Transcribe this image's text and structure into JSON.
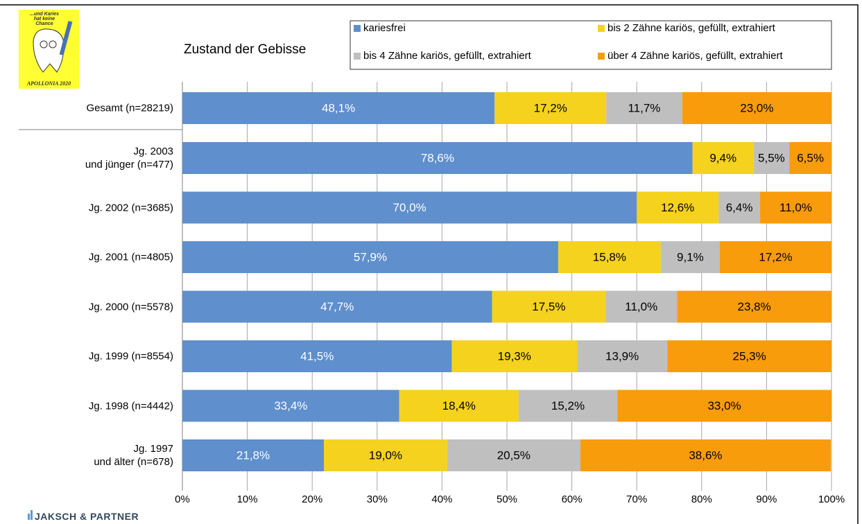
{
  "chart_data": {
    "type": "stacked_barh",
    "title": "Zustand der Gebisse",
    "categories": [
      "Gesamt (n=28219)",
      "Jg. 2003\nund jünger (n=477)",
      "Jg. 2002 (n=3685)",
      "Jg. 2001 (n=4805)",
      "Jg. 2000 (n=5578)",
      "Jg. 1999 (n=8554)",
      "Jg. 1998 (n=4442)",
      "Jg. 1997\nund älter (n=678)"
    ],
    "series": [
      {
        "name": "kariesfrei",
        "color": "#5f8fcc",
        "values": [
          48.1,
          78.6,
          70.0,
          57.9,
          47.7,
          41.5,
          33.4,
          21.8
        ],
        "value_labels": [
          "48,1%",
          "78,6%",
          "70,0%",
          "57,9%",
          "47,7%",
          "41,5%",
          "33,4%",
          "21,8%"
        ]
      },
      {
        "name": "bis 2 Zähne kariös, gefüllt, extrahiert",
        "color": "#f5d21e",
        "values": [
          17.2,
          9.4,
          12.6,
          15.8,
          17.5,
          19.3,
          18.4,
          19.0
        ],
        "value_labels": [
          "17,2%",
          "9,4%",
          "12,6%",
          "15,8%",
          "17,5%",
          "19,3%",
          "18,4%",
          "19,0%"
        ]
      },
      {
        "name": "bis 4 Zähne kariös, gefüllt, extrahiert",
        "color": "#bfbfbf",
        "values": [
          11.7,
          5.5,
          6.4,
          9.1,
          11.0,
          13.9,
          15.2,
          20.5
        ],
        "value_labels": [
          "11,7%",
          "5,5%",
          "6,4%",
          "9,1%",
          "11,0%",
          "13,9%",
          "15,2%",
          "20,5%"
        ]
      },
      {
        "name": "über 4 Zähne kariös, gefüllt, extrahiert",
        "color": "#f99c0c",
        "values": [
          23.0,
          6.5,
          11.0,
          17.2,
          23.8,
          25.3,
          33.0,
          38.6
        ],
        "value_labels": [
          "23,0%",
          "6,5%",
          "11,0%",
          "17,2%",
          "23,8%",
          "25,3%",
          "33,0%",
          "38,6%"
        ]
      }
    ],
    "xlim": [
      0,
      100
    ],
    "xticks": [
      {
        "value": 0,
        "label": "0%"
      },
      {
        "value": 10,
        "label": "10%"
      },
      {
        "value": 20,
        "label": "20%"
      },
      {
        "value": 30,
        "label": "30%"
      },
      {
        "value": 40,
        "label": "40%"
      },
      {
        "value": 50,
        "label": "50%"
      },
      {
        "value": 60,
        "label": "60%"
      },
      {
        "value": 70,
        "label": "70%"
      },
      {
        "value": 80,
        "label": "80%"
      },
      {
        "value": 90,
        "label": "90%"
      },
      {
        "value": 100,
        "label": "100%"
      }
    ],
    "grid": true
  },
  "logo": {
    "slogan": "...und Karies\nhat keine\nChance",
    "name": "APOLLONIA 2020"
  },
  "footer": {
    "brand": "JAKSCH & PARTNER"
  }
}
